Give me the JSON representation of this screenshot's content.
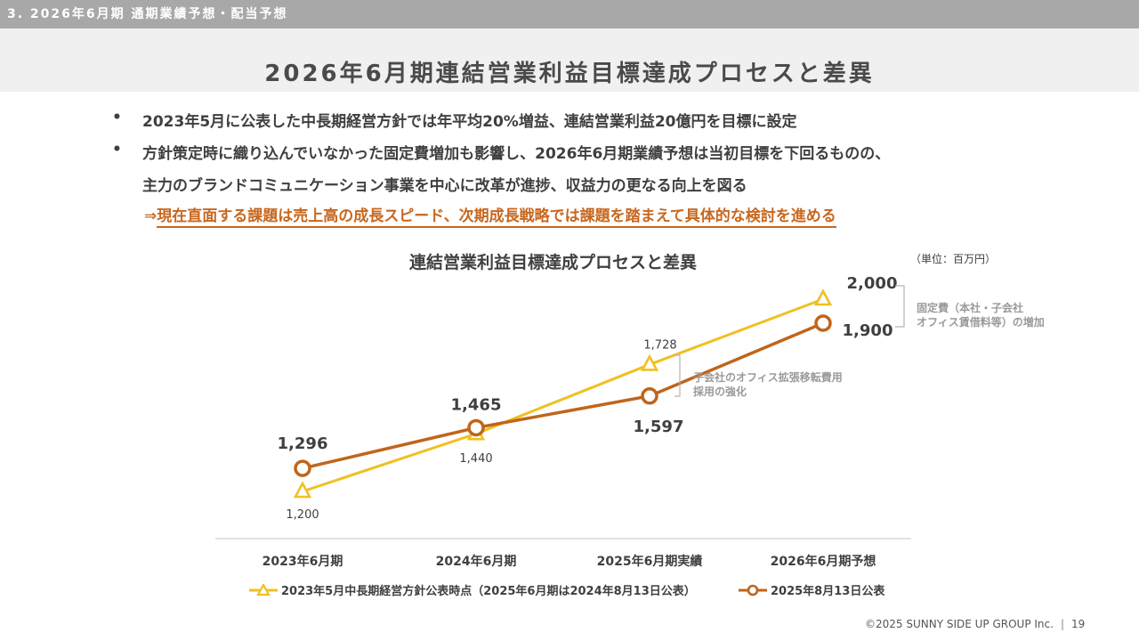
{
  "header": {
    "section": "3. 2026年6月期 通期業績予想・配当予想",
    "title": "2026年6月期連結営業利益目標達成プロセスと差異"
  },
  "bullets": [
    "2023年5月に公表した中長期経営方針では年平均20%増益、連結営業利益20億円を目標に設定",
    "方針策定時に織り込んでいなかった固定費増加も影響し、2026年6月期業績予想は当初目標を下回るものの、",
    "主力のブランドコミュニケーション事業を中心に改革が進捗、収益力の更なる向上を図る"
  ],
  "bullet_mark": "•",
  "conclusion": {
    "arrow": "⇒",
    "text": "現在直面する課題は売上高の成長スピード、次期成長戦略では課題を踏まえて具体的な検討を進める"
  },
  "chart_data": {
    "type": "line",
    "title": "連結営業利益目標達成プロセスと差異",
    "unit": "（単位：百万円）",
    "categories": [
      "2023年6月期",
      "2024年6月期",
      "2025年6月期実績",
      "2026年6月期予想"
    ],
    "ylim": [
      1000,
      2100
    ],
    "series": [
      {
        "name": "2023年5月中長期経営方針公表時点（2025年6月期は2024年8月13日公表）",
        "marker": "triangle",
        "color": "#f0c020",
        "values": [
          1200,
          1440,
          1728,
          2000
        ],
        "labels": [
          "1,200",
          "1,440",
          "1,728",
          "2,000"
        ]
      },
      {
        "name": "2025年8月13日公表",
        "marker": "circle",
        "color": "#c0651a",
        "values": [
          1296,
          1465,
          1597,
          1900
        ],
        "labels": [
          "1,296",
          "1,465",
          "1,597",
          "1,900"
        ]
      }
    ],
    "annotations": {
      "gap_2025": "子会社のオフィス拡張移転費用\n採用の強化",
      "gap_2026": "固定費（本社・子会社\nオフィス賃借料等）の増加"
    },
    "grid": false,
    "legend_position": "bottom"
  },
  "footer": {
    "copyright": "©2025 SUNNY SIDE UP GROUP Inc.",
    "page": "19"
  }
}
